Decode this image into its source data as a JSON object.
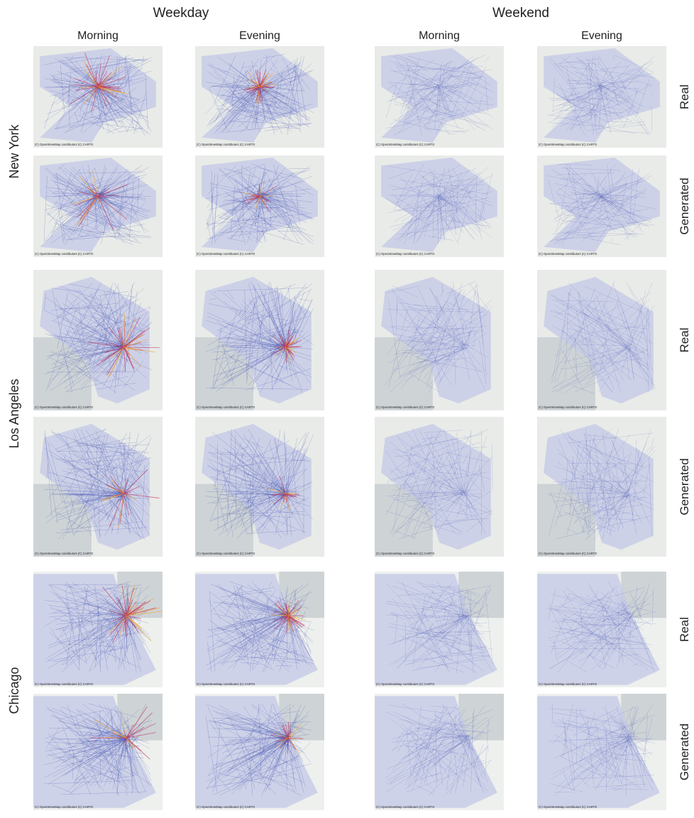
{
  "groups": [
    {
      "title": "Weekday",
      "columns": [
        "Morning",
        "Evening"
      ]
    },
    {
      "title": "Weekend",
      "columns": [
        "Morning",
        "Evening"
      ]
    }
  ],
  "cities": [
    {
      "name": "New York",
      "rows": [
        "Real",
        "Generated"
      ]
    },
    {
      "name": "Los Angeles",
      "rows": [
        "Real",
        "Generated"
      ]
    },
    {
      "name": "Chicago",
      "rows": [
        "Real",
        "Generated"
      ]
    }
  ],
  "attribution": "(C) OpenStreetMap contributors (C) CARTO"
}
